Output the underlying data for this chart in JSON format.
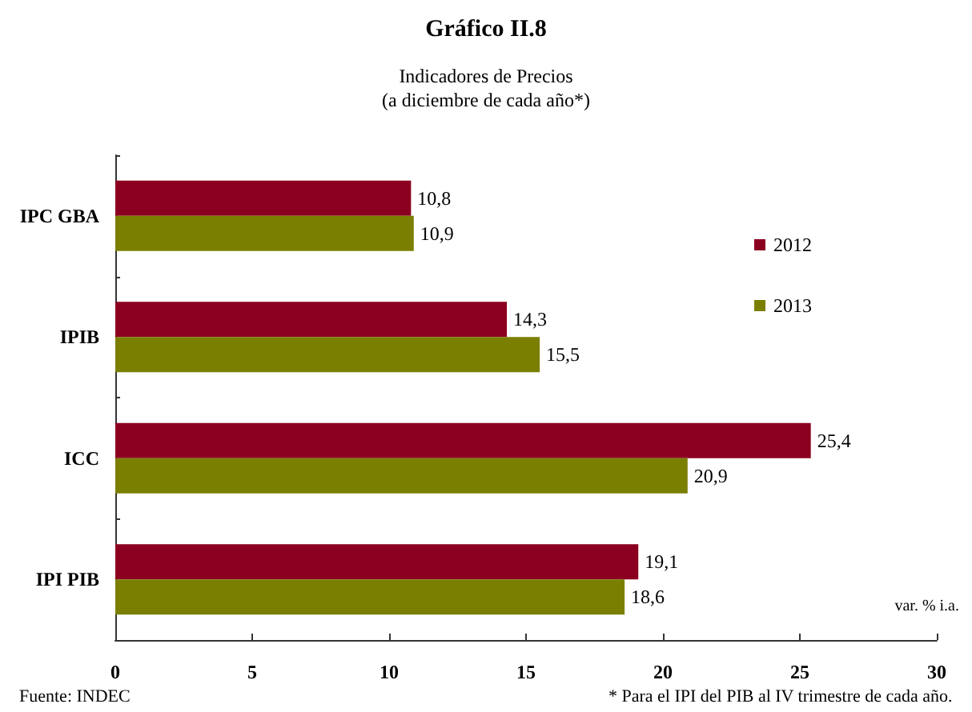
{
  "chart_data": {
    "type": "bar",
    "orientation": "horizontal",
    "title": "Gráfico II.8",
    "subtitle": "Indicadores de Precios\n(a diciembre de cada año*)",
    "categories": [
      "IPC GBA",
      "IPIB",
      "ICC",
      "IPI PIB"
    ],
    "series": [
      {
        "name": "2012",
        "color": "#8b0020",
        "values": [
          10.8,
          14.3,
          25.4,
          19.1
        ],
        "value_labels": [
          "10,8",
          "14,3",
          "25,4",
          "19,1"
        ]
      },
      {
        "name": "2013",
        "color": "#7a7f00",
        "values": [
          10.9,
          15.5,
          20.9,
          18.6
        ],
        "value_labels": [
          "10,9",
          "15,5",
          "20,9",
          "18,6"
        ]
      }
    ],
    "xlim": [
      0,
      30
    ],
    "xticks": [
      0,
      5,
      10,
      15,
      20,
      25,
      30
    ],
    "grid": false,
    "legend": "top right",
    "annotations": [
      "var. % i.a.",
      "Fuente: INDEC",
      "* Para el IPI del PIB al IV trimestre de cada año."
    ]
  }
}
